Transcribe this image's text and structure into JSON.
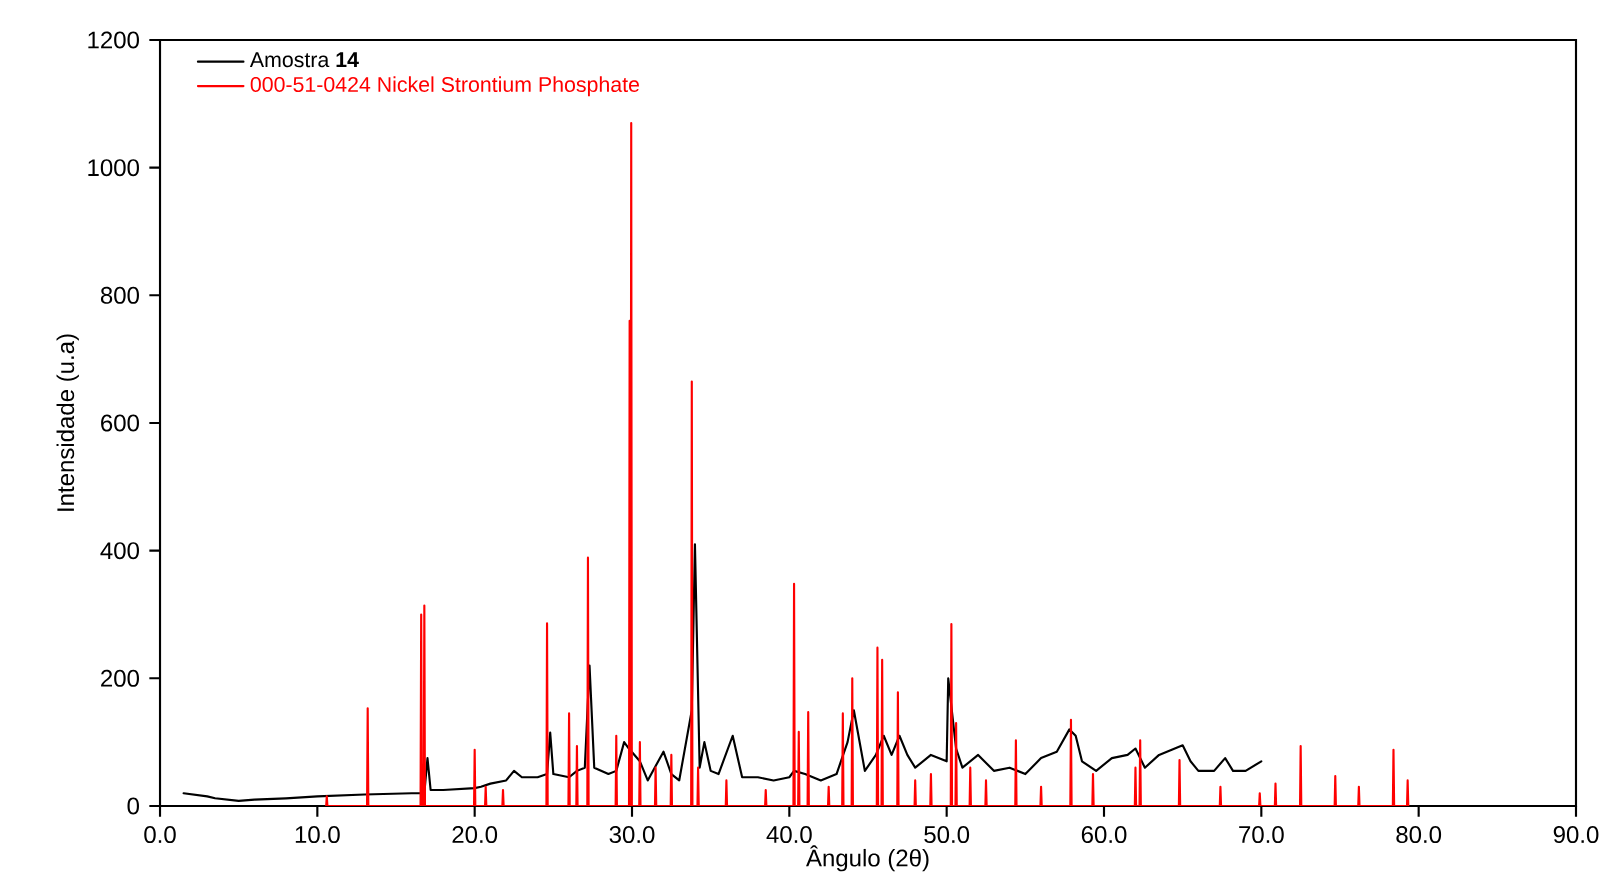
{
  "chart_data": {
    "type": "line",
    "xlabel": "Ângulo (2θ)",
    "ylabel": "Intensidade (u.a)",
    "xlim": [
      0,
      90
    ],
    "ylim": [
      0,
      1200
    ],
    "xticks": [
      {
        "value": 0,
        "label": "0.0"
      },
      {
        "value": 10,
        "label": "10.0"
      },
      {
        "value": 20,
        "label": "20.0"
      },
      {
        "value": 30,
        "label": "30.0"
      },
      {
        "value": 40,
        "label": "40.0"
      },
      {
        "value": 50,
        "label": "50.0"
      },
      {
        "value": 60,
        "label": "60.0"
      },
      {
        "value": 70,
        "label": "70.0"
      },
      {
        "value": 80,
        "label": "80.0"
      },
      {
        "value": 90,
        "label": "90.0"
      }
    ],
    "yticks": [
      0,
      200,
      400,
      600,
      800,
      1000,
      1200
    ],
    "legend": "top left",
    "series": [
      {
        "name": "Amostra **14**",
        "color": "#000000",
        "x": [
          1.5,
          3,
          3.5,
          5,
          6,
          8,
          10,
          12,
          13,
          16,
          16.8,
          17,
          17.2,
          18,
          20,
          20.4,
          21,
          22,
          22.5,
          23,
          24,
          24.6,
          24.8,
          25,
          26,
          26.5,
          27,
          27.3,
          27.6,
          28.5,
          29,
          29.5,
          29.8,
          30.5,
          31,
          32,
          32.5,
          33,
          33.8,
          34.0,
          34.3,
          34.6,
          35,
          35.5,
          36.4,
          37,
          38,
          39,
          40,
          40.3,
          41,
          42,
          43,
          43.7,
          44.1,
          44.8,
          45.5,
          46,
          46.5,
          47,
          47.5,
          48,
          49,
          50,
          50.1,
          50.6,
          51,
          52,
          53,
          54,
          55,
          56,
          57,
          57.8,
          58.2,
          58.6,
          59.5,
          60.5,
          61.5,
          62,
          62.6,
          63.5,
          65,
          65.5,
          66,
          67,
          67.7,
          68.2,
          69,
          70
        ],
        "values": [
          20,
          15,
          12,
          8,
          10,
          12,
          15,
          17,
          18,
          20,
          20,
          75,
          25,
          25,
          28,
          30,
          35,
          40,
          55,
          45,
          45,
          50,
          115,
          50,
          45,
          55,
          60,
          220,
          60,
          50,
          55,
          100,
          90,
          70,
          40,
          85,
          50,
          40,
          150,
          410,
          60,
          100,
          55,
          50,
          110,
          45,
          45,
          40,
          45,
          55,
          50,
          40,
          50,
          100,
          150,
          55,
          80,
          110,
          80,
          110,
          80,
          60,
          80,
          70,
          200,
          90,
          60,
          80,
          55,
          60,
          50,
          75,
          85,
          120,
          110,
          70,
          55,
          75,
          80,
          90,
          60,
          80,
          95,
          70,
          55,
          55,
          75,
          55,
          55,
          70
        ]
      },
      {
        "name": "000-51-0424 Nickel Strontium Phosphate",
        "color": "#ff0000",
        "x": [
          10.56,
          10.6,
          10.64,
          13.16,
          13.2,
          13.24,
          16.56,
          16.6,
          16.64,
          16.76,
          16.8,
          16.84,
          19.96,
          20.0,
          20.04,
          20.66,
          20.7,
          20.74,
          21.76,
          21.8,
          21.84,
          24.56,
          24.6,
          24.64,
          25.96,
          26.0,
          26.04,
          26.46,
          26.5,
          26.54,
          27.16,
          27.2,
          27.24,
          28.96,
          29.0,
          29.04,
          29.81,
          29.85,
          29.89,
          29.91,
          29.95,
          29.99,
          30.46,
          30.5,
          30.54,
          31.46,
          31.5,
          31.54,
          32.46,
          32.5,
          32.54,
          33.76,
          33.8,
          33.84,
          34.16,
          34.2,
          34.24,
          35.96,
          36.0,
          36.04,
          38.46,
          38.5,
          38.54,
          40.26,
          40.3,
          40.34,
          40.56,
          40.6,
          40.64,
          41.16,
          41.2,
          41.24,
          42.46,
          42.5,
          42.54,
          43.36,
          43.4,
          43.44,
          43.96,
          44.0,
          44.04,
          45.56,
          45.6,
          45.64,
          45.86,
          45.9,
          45.94,
          46.86,
          46.9,
          46.94,
          47.96,
          48.0,
          48.04,
          48.96,
          49.0,
          49.04,
          50.26,
          50.3,
          50.34,
          50.56,
          50.6,
          50.64,
          51.46,
          51.5,
          51.54,
          52.46,
          52.5,
          52.54,
          54.36,
          54.4,
          54.44,
          55.96,
          56.0,
          56.04,
          57.86,
          57.9,
          57.94,
          59.26,
          59.3,
          59.34,
          61.96,
          62.0,
          62.04,
          62.26,
          62.3,
          62.34,
          64.76,
          64.8,
          64.84,
          67.36,
          67.4,
          67.44,
          69.86,
          69.9,
          69.94,
          70.86,
          70.9,
          70.94,
          72.46,
          72.5,
          72.54,
          74.66,
          74.7,
          74.74,
          76.16,
          76.2,
          76.24,
          78.36,
          78.4,
          78.44,
          79.26,
          79.3,
          79.34
        ],
        "values": [
          0,
          15,
          0,
          0,
          153,
          0,
          0,
          300,
          0,
          0,
          314,
          0,
          0,
          88,
          0,
          0,
          30,
          0,
          0,
          25,
          0,
          0,
          286,
          0,
          0,
          145,
          0,
          0,
          94,
          0,
          0,
          389,
          0,
          0,
          110,
          0,
          0,
          760,
          0,
          0,
          1070,
          0,
          0,
          100,
          0,
          0,
          60,
          0,
          0,
          80,
          0,
          0,
          665,
          0,
          0,
          60,
          0,
          0,
          40,
          0,
          0,
          25,
          0,
          0,
          348,
          0,
          0,
          116,
          0,
          0,
          147,
          0,
          0,
          30,
          0,
          0,
          145,
          0,
          0,
          200,
          0,
          0,
          248,
          0,
          0,
          229,
          0,
          0,
          178,
          0,
          0,
          40,
          0,
          0,
          50,
          0,
          0,
          285,
          0,
          0,
          130,
          0,
          0,
          60,
          0,
          0,
          40,
          0,
          0,
          103,
          0,
          0,
          30,
          0,
          0,
          135,
          0,
          0,
          50,
          0,
          0,
          60,
          0,
          0,
          103,
          0,
          0,
          72,
          0,
          0,
          30,
          0,
          0,
          20,
          0,
          0,
          35,
          0,
          0,
          94,
          0,
          0,
          47,
          0,
          0,
          30,
          0,
          0,
          88,
          0,
          0,
          40,
          0
        ]
      }
    ]
  }
}
